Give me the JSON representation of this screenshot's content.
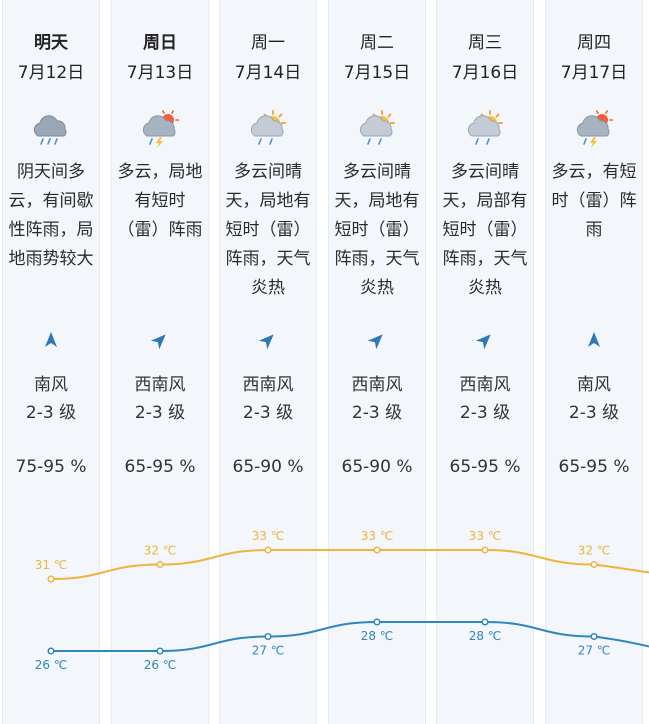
{
  "forecast": [
    {
      "day": "明天",
      "date": "7月12日",
      "icon": "overcast-rain-icon",
      "desc": [
        "阴天间多",
        "云，有间歇",
        "性阵雨，局",
        "地雨势较大"
      ],
      "wind_dir": "南风",
      "wind_level": "2-3 级",
      "wind_arrow_deg": 0,
      "humidity": "75-95 %",
      "high": "31 ℃",
      "low": "26 ℃"
    },
    {
      "day": "周日",
      "date": "7月13日",
      "icon": "cloudy-thunder-shower-icon",
      "desc": [
        "多云，局地",
        "有短时",
        "（雷）阵雨"
      ],
      "wind_dir": "西南风",
      "wind_level": "2-3 级",
      "wind_arrow_deg": 45,
      "humidity": "65-95 %",
      "high": "32 ℃",
      "low": "26 ℃"
    },
    {
      "day": "周一",
      "date": "7月14日",
      "icon": "partly-sunny-shower-icon",
      "desc": [
        "多云间晴",
        "天，局地有",
        "短时（雷）",
        "阵雨，天气",
        "炎热"
      ],
      "wind_dir": "西南风",
      "wind_level": "2-3 级",
      "wind_arrow_deg": 45,
      "humidity": "65-90 %",
      "high": "33 ℃",
      "low": "27 ℃"
    },
    {
      "day": "周二",
      "date": "7月15日",
      "icon": "partly-sunny-shower-icon",
      "desc": [
        "多云间晴",
        "天，局地有",
        "短时（雷）",
        "阵雨，天气",
        "炎热"
      ],
      "wind_dir": "西南风",
      "wind_level": "2-3 级",
      "wind_arrow_deg": 45,
      "humidity": "65-90 %",
      "high": "33 ℃",
      "low": "28 ℃"
    },
    {
      "day": "周三",
      "date": "7月16日",
      "icon": "partly-sunny-shower-icon",
      "desc": [
        "多云间晴",
        "天，局部有",
        "短时（雷）",
        "阵雨，天气",
        "炎热"
      ],
      "wind_dir": "西南风",
      "wind_level": "2-3 级",
      "wind_arrow_deg": 45,
      "humidity": "65-95 %",
      "high": "33 ℃",
      "low": "28 ℃"
    },
    {
      "day": "周四",
      "date": "7月17日",
      "icon": "cloudy-thunder-shower-icon",
      "desc": [
        "多云，有短",
        "时（雷）阵",
        "雨"
      ],
      "wind_dir": "南风",
      "wind_level": "2-3 级",
      "wind_arrow_deg": 0,
      "humidity": "65-95 %",
      "high": "32 ℃",
      "low": "27 ℃"
    }
  ],
  "temperature_data": {
    "high_values": [
      31,
      32,
      33,
      33,
      33,
      32
    ],
    "low_values": [
      26,
      26,
      27,
      28,
      28,
      27
    ],
    "high_color": "#f0b43c",
    "low_color": "#2f87c0"
  },
  "colors": {
    "column_bg": "#f3f6fa",
    "arrow": "#2f78b7"
  }
}
